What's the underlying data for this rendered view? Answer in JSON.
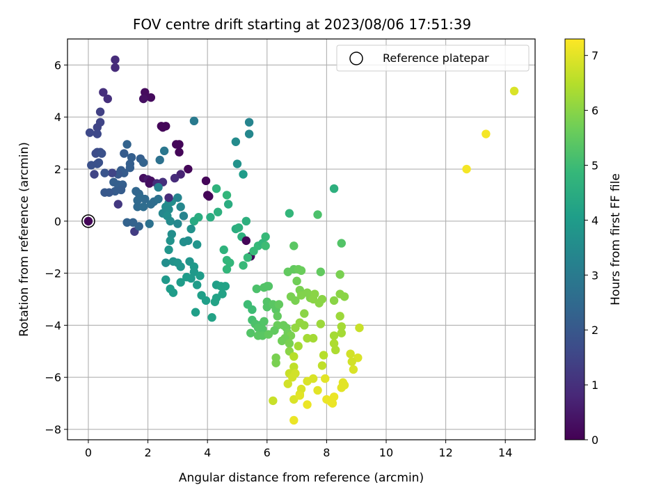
{
  "chart_data": {
    "type": "scatter",
    "title": "FOV centre drift starting at 2023/08/06 17:51:39",
    "xlabel": "Angular distance from reference (arcmin)",
    "ylabel": "Rotation from reference (arcmin)",
    "xlim": [
      -0.7,
      15.0
    ],
    "ylim": [
      -8.4,
      7.0
    ],
    "xticks": [
      0,
      2,
      4,
      6,
      8,
      10,
      12,
      14
    ],
    "yticks": [
      -8,
      -6,
      -4,
      -2,
      0,
      2,
      4,
      6
    ],
    "xtick_labels": [
      "0",
      "2",
      "4",
      "6",
      "8",
      "10",
      "12",
      "14"
    ],
    "ytick_labels": [
      "−8",
      "−6",
      "−4",
      "−2",
      "0",
      "2",
      "4",
      "6"
    ],
    "grid": true,
    "legend": {
      "placement": "top-right",
      "entries": [
        "Reference platepar"
      ]
    },
    "reference_point": {
      "x": 0,
      "y": 0
    },
    "colorbar": {
      "label": "Hours from first FF file",
      "range": [
        0,
        7.3
      ],
      "ticks": [
        0,
        1,
        2,
        3,
        4,
        5,
        6,
        7
      ],
      "tick_labels": [
        "0",
        "1",
        "2",
        "3",
        "4",
        "5",
        "6",
        "7"
      ],
      "colormap": "viridis",
      "colormap_stops": [
        "#440154",
        "#482878",
        "#3e4a89",
        "#31688e",
        "#26828e",
        "#1f9e89",
        "#35b779",
        "#6ece58",
        "#b5de2b",
        "#fde725"
      ]
    },
    "points": [
      {
        "x": 0.9,
        "y": 6.2,
        "c": 0.9
      },
      {
        "x": 0.9,
        "y": 5.9,
        "c": 0.9
      },
      {
        "x": 0.5,
        "y": 4.95,
        "c": 1.0
      },
      {
        "x": 0.65,
        "y": 4.7,
        "c": 1.0
      },
      {
        "x": 1.9,
        "y": 4.95,
        "c": 0.2
      },
      {
        "x": 2.1,
        "y": 4.75,
        "c": 0.2
      },
      {
        "x": 1.85,
        "y": 4.7,
        "c": 0.3
      },
      {
        "x": 0.4,
        "y": 4.2,
        "c": 1.4
      },
      {
        "x": 0.4,
        "y": 3.8,
        "c": 1.5
      },
      {
        "x": 0.3,
        "y": 3.6,
        "c": 1.5
      },
      {
        "x": 0.05,
        "y": 3.4,
        "c": 1.6
      },
      {
        "x": 0.3,
        "y": 3.35,
        "c": 1.6
      },
      {
        "x": 2.45,
        "y": 3.65,
        "c": 0.1
      },
      {
        "x": 2.6,
        "y": 3.65,
        "c": 0.1
      },
      {
        "x": 2.5,
        "y": 3.6,
        "c": 0.1
      },
      {
        "x": 3.55,
        "y": 3.85,
        "c": 3.0
      },
      {
        "x": 1.3,
        "y": 2.95,
        "c": 2.3
      },
      {
        "x": 2.95,
        "y": 2.95,
        "c": 0.1
      },
      {
        "x": 3.05,
        "y": 2.95,
        "c": 0.1
      },
      {
        "x": 3.05,
        "y": 2.65,
        "c": 0.1
      },
      {
        "x": 0.3,
        "y": 2.65,
        "c": 1.7
      },
      {
        "x": 0.4,
        "y": 2.65,
        "c": 1.7
      },
      {
        "x": 0.25,
        "y": 2.6,
        "c": 1.7
      },
      {
        "x": 0.45,
        "y": 2.6,
        "c": 1.8
      },
      {
        "x": 1.2,
        "y": 2.6,
        "c": 2.1
      },
      {
        "x": 1.45,
        "y": 2.45,
        "c": 2.2
      },
      {
        "x": 1.75,
        "y": 2.4,
        "c": 2.2
      },
      {
        "x": 2.55,
        "y": 2.7,
        "c": 2.9
      },
      {
        "x": 2.4,
        "y": 2.35,
        "c": 2.7
      },
      {
        "x": 0.1,
        "y": 2.15,
        "c": 1.8
      },
      {
        "x": 0.3,
        "y": 2.2,
        "c": 1.8
      },
      {
        "x": 0.35,
        "y": 2.25,
        "c": 1.8
      },
      {
        "x": 1.4,
        "y": 2.2,
        "c": 2.2
      },
      {
        "x": 1.85,
        "y": 2.25,
        "c": 2.3
      },
      {
        "x": 1.4,
        "y": 2.05,
        "c": 2.2
      },
      {
        "x": 1.1,
        "y": 1.95,
        "c": 2.1
      },
      {
        "x": 1.2,
        "y": 1.85,
        "c": 2.1
      },
      {
        "x": 1.0,
        "y": 1.8,
        "c": 2.0
      },
      {
        "x": 0.8,
        "y": 1.85,
        "c": 1.5
      },
      {
        "x": 0.55,
        "y": 1.85,
        "c": 1.9
      },
      {
        "x": 0.2,
        "y": 1.8,
        "c": 1.5
      },
      {
        "x": 3.35,
        "y": 2.0,
        "c": 0.1
      },
      {
        "x": 3.1,
        "y": 1.8,
        "c": 0.7
      },
      {
        "x": 2.9,
        "y": 1.65,
        "c": 0.9
      },
      {
        "x": 1.85,
        "y": 1.65,
        "c": 0.3
      },
      {
        "x": 2.0,
        "y": 1.6,
        "c": 0.5
      },
      {
        "x": 2.1,
        "y": 1.55,
        "c": 0.3
      },
      {
        "x": 2.05,
        "y": 1.45,
        "c": 0.3
      },
      {
        "x": 2.3,
        "y": 1.45,
        "c": 0.9
      },
      {
        "x": 2.5,
        "y": 1.5,
        "c": 1.0
      },
      {
        "x": 2.35,
        "y": 1.3,
        "c": 3.2
      },
      {
        "x": 0.85,
        "y": 1.5,
        "c": 2.2
      },
      {
        "x": 1.0,
        "y": 1.4,
        "c": 2.2
      },
      {
        "x": 1.15,
        "y": 1.4,
        "c": 2.2
      },
      {
        "x": 1.1,
        "y": 1.2,
        "c": 2.1
      },
      {
        "x": 0.9,
        "y": 1.15,
        "c": 2.1
      },
      {
        "x": 0.7,
        "y": 1.1,
        "c": 2.0
      },
      {
        "x": 0.55,
        "y": 1.1,
        "c": 2.0
      },
      {
        "x": 1.6,
        "y": 1.15,
        "c": 2.4
      },
      {
        "x": 1.7,
        "y": 1.05,
        "c": 2.4
      },
      {
        "x": 1.75,
        "y": 0.9,
        "c": 2.5
      },
      {
        "x": 1.9,
        "y": 0.85,
        "c": 2.5
      },
      {
        "x": 1.65,
        "y": 0.8,
        "c": 2.5
      },
      {
        "x": 2.2,
        "y": 0.75,
        "c": 2.6
      },
      {
        "x": 2.1,
        "y": 0.65,
        "c": 2.6
      },
      {
        "x": 2.35,
        "y": 0.85,
        "c": 2.7
      },
      {
        "x": 1.0,
        "y": 0.65,
        "c": 1.2
      },
      {
        "x": 1.65,
        "y": 0.55,
        "c": 2.5
      },
      {
        "x": 1.85,
        "y": 0.55,
        "c": 2.6
      },
      {
        "x": 2.5,
        "y": 0.3,
        "c": 3.4
      },
      {
        "x": 2.6,
        "y": 0.55,
        "c": 3.5
      },
      {
        "x": 2.7,
        "y": 0.45,
        "c": 3.5
      },
      {
        "x": 2.7,
        "y": 0.7,
        "c": 3.5
      },
      {
        "x": 2.8,
        "y": 0.75,
        "c": 3.6
      },
      {
        "x": 2.7,
        "y": 0.9,
        "c": 0.9
      },
      {
        "x": 2.65,
        "y": 0.2,
        "c": 3.6
      },
      {
        "x": 3.0,
        "y": 0.9,
        "c": 3.3
      },
      {
        "x": 3.1,
        "y": 0.55,
        "c": 3.4
      },
      {
        "x": 3.2,
        "y": 0.2,
        "c": 3.3
      },
      {
        "x": 3.95,
        "y": 1.55,
        "c": 0.1
      },
      {
        "x": 4.0,
        "y": 1.0,
        "c": 0.1
      },
      {
        "x": 4.05,
        "y": 0.95,
        "c": 0.1
      },
      {
        "x": 4.3,
        "y": 1.25,
        "c": 4.7
      },
      {
        "x": 4.65,
        "y": 1.0,
        "c": 4.8
      },
      {
        "x": 4.7,
        "y": 0.65,
        "c": 4.5
      },
      {
        "x": 4.95,
        "y": 3.05,
        "c": 3.5
      },
      {
        "x": 5.0,
        "y": 2.2,
        "c": 3.7
      },
      {
        "x": 5.2,
        "y": 1.8,
        "c": 4.0
      },
      {
        "x": 5.4,
        "y": 3.8,
        "c": 3.3
      },
      {
        "x": 5.4,
        "y": 3.35,
        "c": 3.4
      },
      {
        "x": 4.35,
        "y": 0.35,
        "c": 4.6
      },
      {
        "x": 4.1,
        "y": 0.15,
        "c": 4.5
      },
      {
        "x": 3.7,
        "y": 0.15,
        "c": 4.5
      },
      {
        "x": 3.55,
        "y": 0.0,
        "c": 4.4
      },
      {
        "x": 1.3,
        "y": -0.05,
        "c": 2.3
      },
      {
        "x": 1.5,
        "y": -0.05,
        "c": 2.3
      },
      {
        "x": 1.55,
        "y": -0.4,
        "c": 1.3
      },
      {
        "x": 1.7,
        "y": -0.2,
        "c": 2.3
      },
      {
        "x": 2.05,
        "y": -0.1,
        "c": 2.7
      },
      {
        "x": 2.75,
        "y": 0.0,
        "c": 3.5
      },
      {
        "x": 2.8,
        "y": -0.5,
        "c": 3.6
      },
      {
        "x": 2.75,
        "y": -0.75,
        "c": 3.7
      },
      {
        "x": 2.7,
        "y": -1.1,
        "c": 3.8
      },
      {
        "x": 3.0,
        "y": -0.1,
        "c": 3.4
      },
      {
        "x": 3.2,
        "y": -0.8,
        "c": 3.6
      },
      {
        "x": 3.35,
        "y": -0.75,
        "c": 3.6
      },
      {
        "x": 3.45,
        "y": -0.3,
        "c": 3.7
      },
      {
        "x": 3.65,
        "y": -0.9,
        "c": 3.8
      },
      {
        "x": 4.95,
        "y": -0.3,
        "c": 4.5
      },
      {
        "x": 5.05,
        "y": -0.25,
        "c": 4.6
      },
      {
        "x": 5.15,
        "y": -0.6,
        "c": 4.6
      },
      {
        "x": 5.3,
        "y": 0.0,
        "c": 4.6
      },
      {
        "x": 5.3,
        "y": -0.75,
        "c": 0.1
      },
      {
        "x": 5.45,
        "y": -1.35,
        "c": 0.1
      },
      {
        "x": 5.55,
        "y": -1.15,
        "c": 4.9
      },
      {
        "x": 5.7,
        "y": -0.95,
        "c": 4.9
      },
      {
        "x": 5.85,
        "y": -0.85,
        "c": 4.8
      },
      {
        "x": 5.95,
        "y": -0.6,
        "c": 4.9
      },
      {
        "x": 5.95,
        "y": -0.95,
        "c": 5.0
      },
      {
        "x": 4.55,
        "y": -1.1,
        "c": 4.7
      },
      {
        "x": 4.65,
        "y": -1.5,
        "c": 4.8
      },
      {
        "x": 4.65,
        "y": -1.85,
        "c": 4.8
      },
      {
        "x": 4.75,
        "y": -1.6,
        "c": 4.8
      },
      {
        "x": 5.2,
        "y": -1.7,
        "c": 4.9
      },
      {
        "x": 5.35,
        "y": -1.4,
        "c": 4.9
      },
      {
        "x": 2.6,
        "y": -1.6,
        "c": 3.6
      },
      {
        "x": 2.85,
        "y": -1.55,
        "c": 3.7
      },
      {
        "x": 3.0,
        "y": -1.6,
        "c": 3.8
      },
      {
        "x": 3.1,
        "y": -1.75,
        "c": 3.8
      },
      {
        "x": 3.4,
        "y": -1.55,
        "c": 3.8
      },
      {
        "x": 3.55,
        "y": -1.75,
        "c": 3.9
      },
      {
        "x": 3.55,
        "y": -1.95,
        "c": 3.9
      },
      {
        "x": 3.45,
        "y": -2.2,
        "c": 3.9
      },
      {
        "x": 3.75,
        "y": -2.1,
        "c": 4.0
      },
      {
        "x": 3.65,
        "y": -2.45,
        "c": 4.0
      },
      {
        "x": 2.6,
        "y": -2.25,
        "c": 3.9
      },
      {
        "x": 2.75,
        "y": -2.6,
        "c": 4.0
      },
      {
        "x": 2.85,
        "y": -2.75,
        "c": 4.0
      },
      {
        "x": 3.1,
        "y": -2.35,
        "c": 4.0
      },
      {
        "x": 3.3,
        "y": -2.15,
        "c": 4.0
      },
      {
        "x": 4.3,
        "y": -2.45,
        "c": 4.1
      },
      {
        "x": 4.45,
        "y": -2.5,
        "c": 4.2
      },
      {
        "x": 4.6,
        "y": -2.5,
        "c": 4.2
      },
      {
        "x": 4.5,
        "y": -2.8,
        "c": 4.2
      },
      {
        "x": 3.8,
        "y": -2.85,
        "c": 4.1
      },
      {
        "x": 3.95,
        "y": -3.05,
        "c": 4.1
      },
      {
        "x": 4.25,
        "y": -3.1,
        "c": 4.2
      },
      {
        "x": 4.3,
        "y": -2.95,
        "c": 4.2
      },
      {
        "x": 3.6,
        "y": -3.5,
        "c": 4.1
      },
      {
        "x": 4.15,
        "y": -3.7,
        "c": 4.2
      },
      {
        "x": 5.35,
        "y": -3.2,
        "c": 5.0
      },
      {
        "x": 5.5,
        "y": -3.4,
        "c": 5.0
      },
      {
        "x": 5.5,
        "y": -3.8,
        "c": 5.1
      },
      {
        "x": 5.65,
        "y": -2.6,
        "c": 5.2
      },
      {
        "x": 5.9,
        "y": -2.55,
        "c": 5.3
      },
      {
        "x": 6.0,
        "y": -2.5,
        "c": 5.3
      },
      {
        "x": 6.05,
        "y": -2.5,
        "c": 5.3
      },
      {
        "x": 6.0,
        "y": -3.1,
        "c": 5.3
      },
      {
        "x": 6.0,
        "y": -3.3,
        "c": 5.3
      },
      {
        "x": 5.6,
        "y": -3.95,
        "c": 5.2
      },
      {
        "x": 5.75,
        "y": -4.0,
        "c": 5.2
      },
      {
        "x": 5.85,
        "y": -4.15,
        "c": 5.3
      },
      {
        "x": 5.9,
        "y": -3.85,
        "c": 5.3
      },
      {
        "x": 6.2,
        "y": -3.2,
        "c": 5.4
      },
      {
        "x": 6.3,
        "y": -3.4,
        "c": 5.4
      },
      {
        "x": 6.35,
        "y": -3.65,
        "c": 5.5
      },
      {
        "x": 6.4,
        "y": -3.2,
        "c": 5.5
      },
      {
        "x": 6.55,
        "y": -4.0,
        "c": 5.6
      },
      {
        "x": 6.35,
        "y": -4.0,
        "c": 5.6
      },
      {
        "x": 5.45,
        "y": -4.3,
        "c": 5.3
      },
      {
        "x": 5.7,
        "y": -4.1,
        "c": 5.3
      },
      {
        "x": 5.7,
        "y": -4.4,
        "c": 5.4
      },
      {
        "x": 5.85,
        "y": -4.4,
        "c": 5.4
      },
      {
        "x": 6.05,
        "y": -4.35,
        "c": 5.5
      },
      {
        "x": 6.25,
        "y": -4.2,
        "c": 5.5
      },
      {
        "x": 6.65,
        "y": -4.1,
        "c": 5.6
      },
      {
        "x": 6.7,
        "y": -4.3,
        "c": 5.7
      },
      {
        "x": 6.8,
        "y": -4.4,
        "c": 5.8
      },
      {
        "x": 6.6,
        "y": -4.5,
        "c": 5.7
      },
      {
        "x": 6.5,
        "y": -4.6,
        "c": 5.7
      },
      {
        "x": 6.75,
        "y": -4.7,
        "c": 5.8
      },
      {
        "x": 6.75,
        "y": -5.0,
        "c": 6.0
      },
      {
        "x": 6.3,
        "y": -5.25,
        "c": 5.8
      },
      {
        "x": 6.3,
        "y": -5.45,
        "c": 5.8
      },
      {
        "x": 6.7,
        "y": -1.95,
        "c": 5.5
      },
      {
        "x": 6.9,
        "y": -1.85,
        "c": 5.5
      },
      {
        "x": 7.05,
        "y": -1.85,
        "c": 5.6
      },
      {
        "x": 7.15,
        "y": -1.9,
        "c": 5.6
      },
      {
        "x": 7.0,
        "y": -2.3,
        "c": 5.7
      },
      {
        "x": 7.8,
        "y": -1.95,
        "c": 5.5
      },
      {
        "x": 6.9,
        "y": -0.95,
        "c": 5.4
      },
      {
        "x": 6.75,
        "y": 0.3,
        "c": 4.8
      },
      {
        "x": 7.7,
        "y": 0.25,
        "c": 5.2
      },
      {
        "x": 8.25,
        "y": 1.25,
        "c": 4.6
      },
      {
        "x": 8.5,
        "y": -0.85,
        "c": 5.3
      },
      {
        "x": 7.1,
        "y": -2.65,
        "c": 5.8
      },
      {
        "x": 6.8,
        "y": -2.9,
        "c": 5.8
      },
      {
        "x": 6.95,
        "y": -3.05,
        "c": 5.8
      },
      {
        "x": 7.15,
        "y": -2.85,
        "c": 5.9
      },
      {
        "x": 7.35,
        "y": -2.75,
        "c": 5.9
      },
      {
        "x": 7.45,
        "y": -2.95,
        "c": 5.9
      },
      {
        "x": 7.6,
        "y": -2.8,
        "c": 6.0
      },
      {
        "x": 7.55,
        "y": -3.0,
        "c": 6.0
      },
      {
        "x": 7.85,
        "y": -3.0,
        "c": 6.0
      },
      {
        "x": 7.75,
        "y": -3.15,
        "c": 6.0
      },
      {
        "x": 8.25,
        "y": -3.05,
        "c": 6.0
      },
      {
        "x": 8.45,
        "y": -2.8,
        "c": 6.0
      },
      {
        "x": 8.6,
        "y": -2.9,
        "c": 6.0
      },
      {
        "x": 8.45,
        "y": -2.05,
        "c": 5.8
      },
      {
        "x": 7.25,
        "y": -3.55,
        "c": 6.0
      },
      {
        "x": 7.1,
        "y": -3.9,
        "c": 6.1
      },
      {
        "x": 7.25,
        "y": -4.0,
        "c": 6.1
      },
      {
        "x": 6.95,
        "y": -4.1,
        "c": 6.1
      },
      {
        "x": 7.8,
        "y": -3.95,
        "c": 6.2
      },
      {
        "x": 8.45,
        "y": -3.65,
        "c": 6.2
      },
      {
        "x": 8.5,
        "y": -4.05,
        "c": 6.3
      },
      {
        "x": 8.5,
        "y": -4.3,
        "c": 6.3
      },
      {
        "x": 8.25,
        "y": -4.4,
        "c": 6.3
      },
      {
        "x": 7.35,
        "y": -4.5,
        "c": 6.3
      },
      {
        "x": 7.55,
        "y": -4.5,
        "c": 6.3
      },
      {
        "x": 7.05,
        "y": -4.8,
        "c": 6.3
      },
      {
        "x": 8.25,
        "y": -4.7,
        "c": 6.4
      },
      {
        "x": 8.3,
        "y": -4.95,
        "c": 6.4
      },
      {
        "x": 7.9,
        "y": -5.15,
        "c": 6.5
      },
      {
        "x": 6.9,
        "y": -5.2,
        "c": 6.5
      },
      {
        "x": 6.9,
        "y": -5.6,
        "c": 6.6
      },
      {
        "x": 7.85,
        "y": -5.55,
        "c": 6.6
      },
      {
        "x": 9.1,
        "y": -4.1,
        "c": 6.7
      },
      {
        "x": 8.8,
        "y": -5.1,
        "c": 6.8
      },
      {
        "x": 9.05,
        "y": -5.25,
        "c": 6.9
      },
      {
        "x": 8.85,
        "y": -5.4,
        "c": 6.8
      },
      {
        "x": 8.9,
        "y": -5.7,
        "c": 6.9
      },
      {
        "x": 6.75,
        "y": -5.85,
        "c": 6.7
      },
      {
        "x": 6.95,
        "y": -5.85,
        "c": 6.8
      },
      {
        "x": 6.85,
        "y": -6.0,
        "c": 6.8
      },
      {
        "x": 6.7,
        "y": -6.25,
        "c": 6.8
      },
      {
        "x": 7.35,
        "y": -6.15,
        "c": 6.9
      },
      {
        "x": 7.55,
        "y": -6.05,
        "c": 6.9
      },
      {
        "x": 7.95,
        "y": -6.05,
        "c": 7.0
      },
      {
        "x": 8.55,
        "y": -6.2,
        "c": 7.0
      },
      {
        "x": 8.5,
        "y": -6.4,
        "c": 7.0
      },
      {
        "x": 8.6,
        "y": -6.3,
        "c": 7.0
      },
      {
        "x": 7.15,
        "y": -6.45,
        "c": 6.9
      },
      {
        "x": 7.1,
        "y": -6.65,
        "c": 6.9
      },
      {
        "x": 7.7,
        "y": -6.5,
        "c": 7.0
      },
      {
        "x": 6.2,
        "y": -6.9,
        "c": 6.7
      },
      {
        "x": 6.9,
        "y": -6.85,
        "c": 6.9
      },
      {
        "x": 7.1,
        "y": -6.7,
        "c": 7.0
      },
      {
        "x": 8.0,
        "y": -6.85,
        "c": 7.1
      },
      {
        "x": 8.25,
        "y": -6.75,
        "c": 7.1
      },
      {
        "x": 8.15,
        "y": -6.95,
        "c": 7.1
      },
      {
        "x": 8.2,
        "y": -7.0,
        "c": 7.1
      },
      {
        "x": 7.35,
        "y": -7.05,
        "c": 7.1
      },
      {
        "x": 6.9,
        "y": -7.65,
        "c": 7.1
      },
      {
        "x": 12.7,
        "y": 2.0,
        "c": 7.2
      },
      {
        "x": 13.35,
        "y": 3.35,
        "c": 7.2
      },
      {
        "x": 14.3,
        "y": 5.0,
        "c": 6.9
      }
    ]
  }
}
